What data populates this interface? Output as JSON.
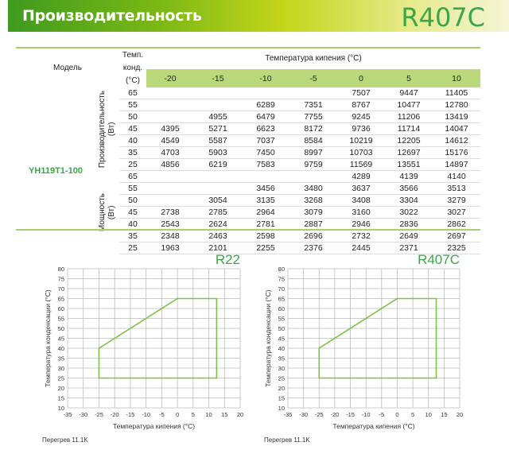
{
  "header": {
    "title": "Производительность",
    "refrigerant": "R407C"
  },
  "table": {
    "model_header": "Модель",
    "cond_header_line1": "Темп. конд.",
    "cond_header_line2": "(°C)",
    "evap_header": "Температура кипения (°C)",
    "evap_temps": [
      "-20",
      "-15",
      "-10",
      "-5",
      "0",
      "5",
      "10"
    ],
    "model": "YH119T1-100",
    "groups": [
      {
        "label_line1": "Производительность",
        "label_line2": "(Вт)",
        "rows": [
          {
            "t": "65",
            "v": [
              "",
              "",
              "",
              "",
              "7507",
              "9447",
              "11405"
            ]
          },
          {
            "t": "55",
            "v": [
              "",
              "",
              "6289",
              "7351",
              "8767",
              "10477",
              "12780"
            ]
          },
          {
            "t": "50",
            "v": [
              "",
              "4955",
              "6479",
              "7755",
              "9245",
              "11206",
              "13419"
            ]
          },
          {
            "t": "45",
            "v": [
              "4395",
              "5271",
              "6623",
              "8172",
              "9736",
              "11714",
              "14047"
            ]
          },
          {
            "t": "40",
            "v": [
              "4549",
              "5587",
              "7037",
              "8584",
              "10219",
              "12205",
              "14612"
            ]
          },
          {
            "t": "35",
            "v": [
              "4703",
              "5903",
              "7450",
              "8997",
              "10703",
              "12697",
              "15176"
            ]
          },
          {
            "t": "25",
            "v": [
              "4856",
              "6219",
              "7583",
              "9759",
              "11569",
              "13551",
              "14897"
            ]
          }
        ]
      },
      {
        "label_line1": "Мощность",
        "label_line2": "(Вт)",
        "rows": [
          {
            "t": "65",
            "v": [
              "",
              "",
              "",
              "",
              "4289",
              "4139",
              "4140"
            ]
          },
          {
            "t": "55",
            "v": [
              "",
              "",
              "3456",
              "3480",
              "3637",
              "3566",
              "3513"
            ]
          },
          {
            "t": "50",
            "v": [
              "",
              "3054",
              "3135",
              "3268",
              "3408",
              "3304",
              "3279"
            ]
          },
          {
            "t": "45",
            "v": [
              "2738",
              "2785",
              "2964",
              "3079",
              "3160",
              "3022",
              "3027"
            ]
          },
          {
            "t": "40",
            "v": [
              "2543",
              "2624",
              "2781",
              "2887",
              "2946",
              "2836",
              "2862"
            ]
          },
          {
            "t": "35",
            "v": [
              "2348",
              "2463",
              "2598",
              "2696",
              "2732",
              "2649",
              "2697"
            ]
          },
          {
            "t": "25",
            "v": [
              "1963",
              "2101",
              "2255",
              "2376",
              "2445",
              "2371",
              "2325"
            ]
          }
        ]
      }
    ]
  },
  "chart_data": [
    {
      "type": "line",
      "title": "R22",
      "xlabel": "Температура кипения (°C)",
      "ylabel": "Температура конденсации (°C)",
      "note": "Перегрев 11.1K",
      "xlim": [
        -35,
        20
      ],
      "ylim": [
        10,
        80
      ],
      "xticks": [
        -35,
        -30,
        -25,
        -20,
        -15,
        -10,
        -5,
        0,
        5,
        10,
        15,
        20
      ],
      "yticks": [
        10,
        15,
        20,
        25,
        30,
        35,
        40,
        45,
        50,
        55,
        60,
        65,
        70,
        75,
        80
      ],
      "grid": true,
      "color": "#7cc243",
      "polygon": [
        [
          -25,
          25
        ],
        [
          -25,
          40
        ],
        [
          0,
          65
        ],
        [
          12.5,
          65
        ],
        [
          12.5,
          25
        ]
      ]
    },
    {
      "type": "line",
      "title": "R407C",
      "xlabel": "Температура кипения (°C)",
      "ylabel": "Температура конденсации (°C)",
      "note": "Перегрев 11.1K",
      "xlim": [
        -35,
        20
      ],
      "ylim": [
        10,
        80
      ],
      "xticks": [
        -35,
        -30,
        -25,
        -20,
        -15,
        -10,
        -5,
        0,
        5,
        10,
        15,
        20
      ],
      "yticks": [
        10,
        15,
        20,
        25,
        30,
        35,
        40,
        45,
        50,
        55,
        60,
        65,
        70,
        75,
        80
      ],
      "grid": true,
      "color": "#7cc243",
      "polygon": [
        [
          -25,
          25
        ],
        [
          -25,
          40
        ],
        [
          0,
          65
        ],
        [
          12.5,
          65
        ],
        [
          12.5,
          25
        ]
      ]
    }
  ]
}
